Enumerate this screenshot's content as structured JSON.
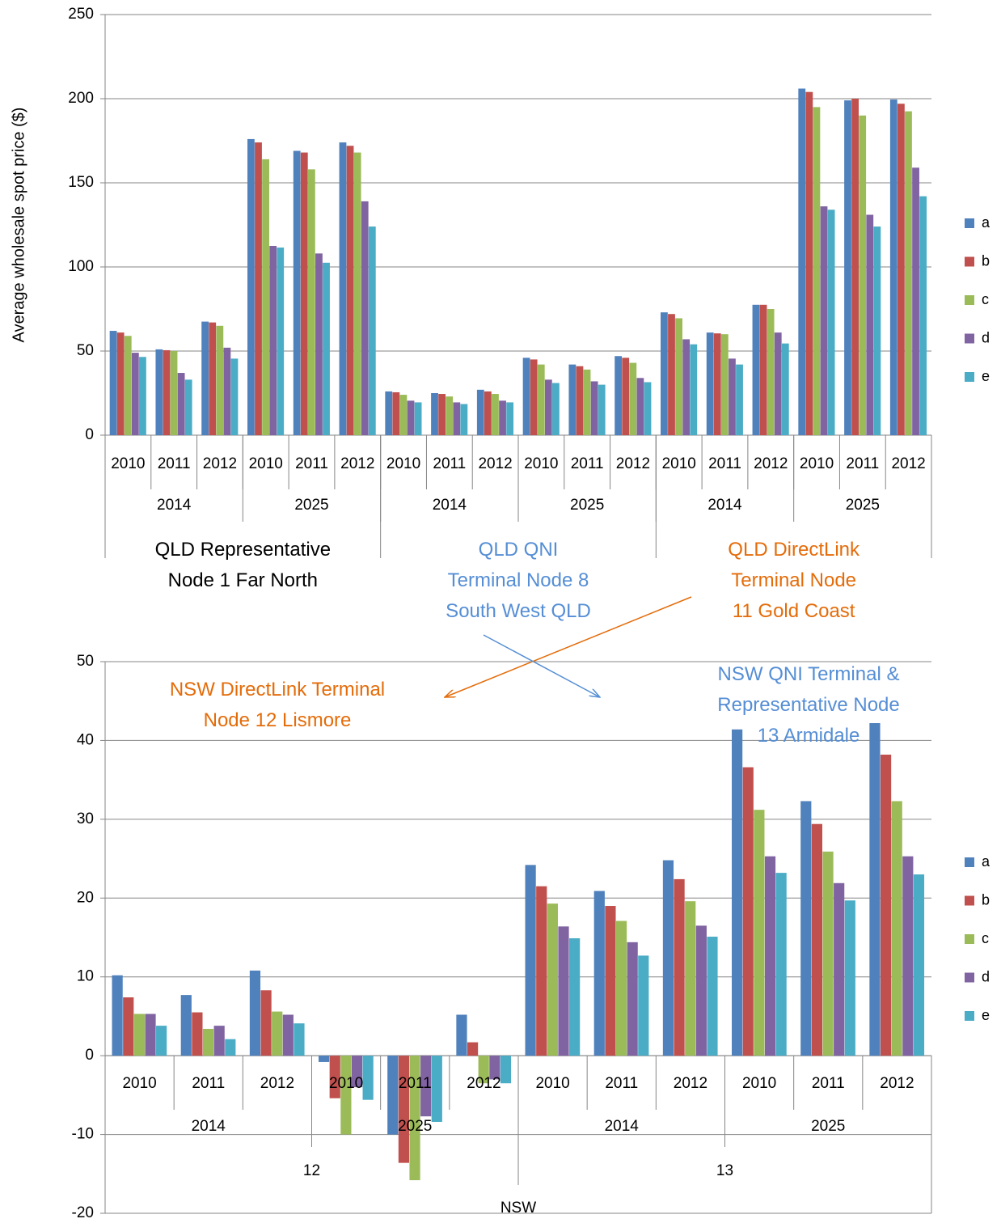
{
  "chart_data": [
    {
      "type": "bar",
      "y_label": "Average wholesale spot price ($)",
      "categories": [
        "2010",
        "2011",
        "2012",
        "2010",
        "2011",
        "2012",
        "2010",
        "2011",
        "2012",
        "2010",
        "2011",
        "2012",
        "2010",
        "2011",
        "2012",
        "2010",
        "2011",
        "2012"
      ],
      "groups": [
        "2014",
        "2025",
        "2014",
        "2025",
        "2014",
        "2025"
      ],
      "regions": [
        {
          "text": "QLD Representative\nNode 1 Far North",
          "color": "#000000"
        },
        {
          "text": "QLD QNI\nTerminal Node 8\nSouth West QLD",
          "color": "#558ED5"
        },
        {
          "text": "QLD DirectLink\nTerminal Node\n11 Gold Coast",
          "color": "#E46C0A"
        }
      ],
      "series": [
        {
          "name": "a",
          "color": "#4F81BD",
          "values": [
            62,
            51,
            67.5,
            176,
            169,
            174,
            26,
            25,
            27,
            46,
            42,
            47,
            73,
            61,
            77.5,
            206,
            199,
            199.5
          ]
        },
        {
          "name": "b",
          "color": "#C0504D",
          "values": [
            61,
            50.5,
            67,
            174,
            168,
            172,
            25.5,
            24.5,
            26,
            45,
            41,
            46,
            72,
            60.5,
            77.5,
            204,
            200,
            197
          ]
        },
        {
          "name": "c",
          "color": "#9BBB59",
          "values": [
            59,
            50,
            65,
            164,
            158,
            168,
            24,
            23,
            24.5,
            42,
            39,
            43,
            69.5,
            60,
            75,
            195,
            190,
            192.5
          ]
        },
        {
          "name": "d",
          "color": "#8064A2",
          "values": [
            49,
            37,
            52,
            112.5,
            108,
            139,
            20.5,
            19.5,
            20.5,
            33,
            32,
            34,
            57,
            45.5,
            61,
            136,
            131,
            159
          ]
        },
        {
          "name": "e",
          "color": "#4BACC6",
          "values": [
            46.5,
            33,
            45.5,
            111.5,
            102.5,
            124,
            19.5,
            18.5,
            19.5,
            31,
            30,
            31.5,
            54,
            42,
            54.5,
            134,
            124,
            142
          ]
        }
      ],
      "ylim": [
        0,
        250
      ],
      "yticks": [
        0,
        50,
        100,
        150,
        200,
        250
      ],
      "grid": true,
      "legend": "right"
    },
    {
      "type": "bar",
      "categories": [
        "2010",
        "2011",
        "2012",
        "2010",
        "2011",
        "2012",
        "2010",
        "2011",
        "2012",
        "2010",
        "2011",
        "2012"
      ],
      "groups": [
        "2014",
        "2025",
        "2014",
        "2025"
      ],
      "subregions": [
        "12",
        "13"
      ],
      "regions": [
        "NSW"
      ],
      "annotations": [
        {
          "text": "NSW DirectLink Terminal\nNode 12 Lismore",
          "color": "#E46C0A"
        },
        {
          "text": "NSW QNI Terminal &\nRepresentative Node 13 Armidale",
          "color": "#558ED5"
        }
      ],
      "series": [
        {
          "name": "a",
          "color": "#4F81BD",
          "values": [
            10.2,
            7.7,
            10.8,
            -0.8,
            -10,
            5.2,
            24.2,
            20.9,
            24.8,
            41.4,
            32.3,
            42.2
          ]
        },
        {
          "name": "b",
          "color": "#C0504D",
          "values": [
            7.4,
            5.5,
            8.3,
            -5.4,
            -13.6,
            1.7,
            21.5,
            19,
            22.4,
            36.6,
            29.4,
            38.2
          ]
        },
        {
          "name": "c",
          "color": "#9BBB59",
          "values": [
            5.3,
            3.4,
            5.6,
            -10,
            -15.8,
            -3.5,
            19.3,
            17.1,
            19.6,
            31.2,
            25.9,
            32.3
          ]
        },
        {
          "name": "d",
          "color": "#8064A2",
          "values": [
            5.3,
            3.8,
            5.2,
            -4,
            -7.7,
            -3,
            16.4,
            14.4,
            16.5,
            25.3,
            21.9,
            25.3
          ]
        },
        {
          "name": "e",
          "color": "#4BACC6",
          "values": [
            3.8,
            2.1,
            4.1,
            -5.6,
            -8.4,
            -3.5,
            14.9,
            12.7,
            15.1,
            23.2,
            19.7,
            23
          ]
        }
      ],
      "ylim": [
        -20,
        50
      ],
      "yticks": [
        -20,
        -10,
        0,
        10,
        20,
        30,
        40,
        50
      ],
      "grid": true,
      "legend": "right"
    }
  ]
}
